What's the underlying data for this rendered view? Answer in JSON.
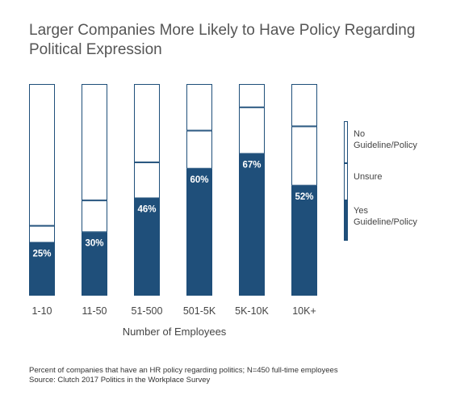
{
  "title_line1": "Larger Companies More Likely to Have Policy Regarding",
  "title_line2": "Political Expression",
  "legend": [
    {
      "label_line1": "No",
      "label_line2": "Guideline/Policy",
      "fill": "#ffffff"
    },
    {
      "label_line1": "Unsure",
      "label_line2": "",
      "fill": "#ffffff"
    },
    {
      "label_line1": "Yes",
      "label_line2": "Guideline/Policy",
      "fill": "#1f4f7a"
    }
  ],
  "footnote_line1": "Percent of companies that have an HR policy regarding politics; N=450 full-time employees",
  "footnote_line2": "Source: Clutch 2017 Politics in the Workplace Survey",
  "colors": {
    "yes": "#1f4f7a",
    "outline": "#1f4f7a",
    "text_light": "#ffffff"
  },
  "chart_data": {
    "type": "bar",
    "stacked": true,
    "categories": [
      "1-10",
      "11-50",
      "51-500",
      "501-5K",
      "5K-10K",
      "10K+"
    ],
    "series": [
      {
        "name": "Yes Guideline/Policy",
        "values": [
          25,
          30,
          46,
          60,
          67,
          52
        ]
      },
      {
        "name": "Unsure",
        "values": [
          8,
          15,
          17,
          18,
          22,
          28
        ]
      },
      {
        "name": "No Guideline/Policy",
        "values": [
          67,
          55,
          37,
          22,
          11,
          20
        ]
      }
    ],
    "data_labels": [
      "25%",
      "30%",
      "46%",
      "60%",
      "67%",
      "52%"
    ],
    "xlabel": "Number of Employees",
    "ylabel": "",
    "ylim": [
      0,
      100
    ],
    "grid": false,
    "legend_position": "right"
  }
}
